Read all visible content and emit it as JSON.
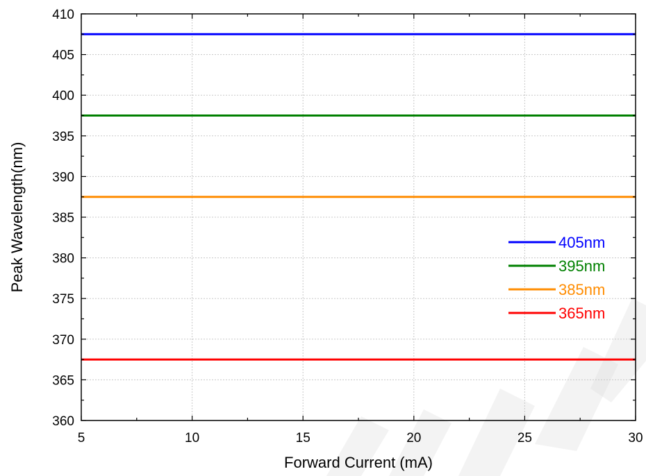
{
  "chart_data": {
    "type": "line",
    "xlabel": "Forward Current (mA)",
    "ylabel": "Peak Wavelength(nm)",
    "xlim": [
      5,
      30
    ],
    "ylim": [
      360,
      410
    ],
    "xticks": [
      5,
      10,
      15,
      20,
      25,
      30
    ],
    "yticks": [
      360,
      365,
      370,
      375,
      380,
      385,
      390,
      395,
      400,
      405,
      410
    ],
    "grid": true,
    "legend_placement": "right",
    "series": [
      {
        "name": "405nm",
        "color": "#0000ff",
        "x": [
          5,
          30
        ],
        "y": [
          407.5,
          407.5
        ]
      },
      {
        "name": "395nm",
        "color": "#008000",
        "x": [
          5,
          30
        ],
        "y": [
          397.5,
          397.5
        ]
      },
      {
        "name": "385nm",
        "color": "#ff8c00",
        "x": [
          5,
          30
        ],
        "y": [
          387.5,
          387.5
        ]
      },
      {
        "name": "365nm",
        "color": "#ff0000",
        "x": [
          5,
          30
        ],
        "y": [
          367.5,
          367.5
        ]
      }
    ]
  }
}
